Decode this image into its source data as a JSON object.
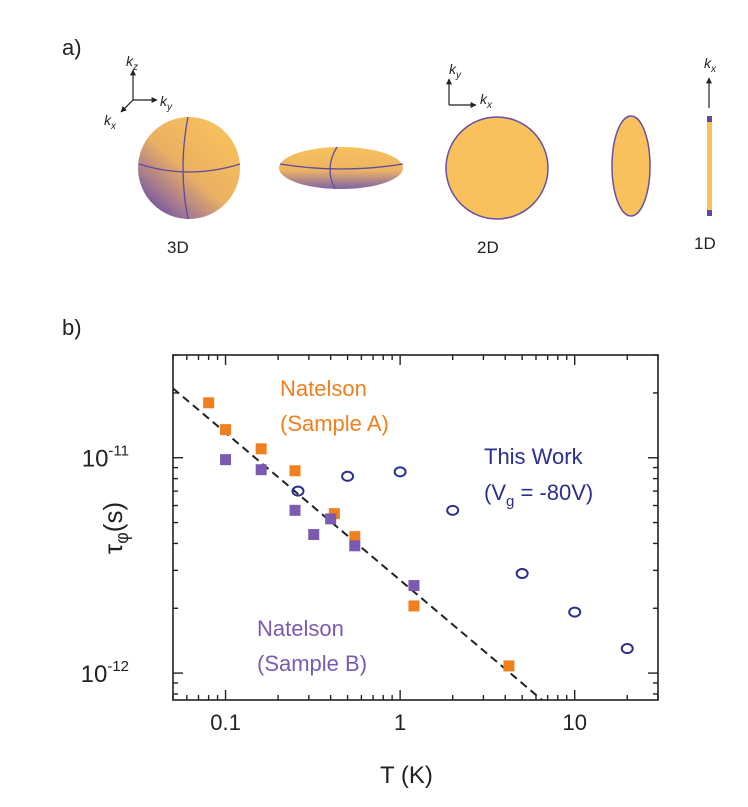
{
  "panel_a": {
    "label": "a)",
    "axes_3d": {
      "z": "k",
      "z_sub": "z",
      "y": "k",
      "y_sub": "y",
      "x": "k",
      "x_sub": "x"
    },
    "axes_2d": {
      "y": "k",
      "y_sub": "y",
      "x": "k",
      "x_sub": "x"
    },
    "axes_1d": {
      "x": "k",
      "x_sub": "x"
    },
    "labels": {
      "d3": "3D",
      "d2": "2D",
      "d1": "1D"
    },
    "colors": {
      "fill": "#F8C15C",
      "edge": "#6A4FA3"
    }
  },
  "panel_b": {
    "label": "b)"
  },
  "chart_data": {
    "type": "scatter",
    "x_scale": "log",
    "y_scale": "log",
    "xlim": [
      0.05,
      30
    ],
    "ylim": [
      7.5e-13,
      3e-11
    ],
    "xlabel": "T (K)",
    "ylabel_main": "τ",
    "ylabel_sub": "φ",
    "ylabel_tail": "(s)",
    "x_ticks": [
      {
        "value": 0.1,
        "label": "0.1"
      },
      {
        "value": 1,
        "label": "1"
      },
      {
        "value": 10,
        "label": "10"
      }
    ],
    "y_ticks": [
      {
        "value": 1e-12,
        "base": "10",
        "exp": "-12"
      },
      {
        "value": 1e-11,
        "base": "10",
        "exp": "-11"
      }
    ],
    "series": [
      {
        "name": "Natelson (Sample A)",
        "marker": "square",
        "color": "#F07F1E",
        "x": [
          0.08,
          0.1,
          0.16,
          0.25,
          0.42,
          0.55,
          1.2,
          4.2
        ],
        "y": [
          1.8e-11,
          1.35e-11,
          1.1e-11,
          8.7e-12,
          5.5e-12,
          4.3e-12,
          2.05e-12,
          1.08e-12
        ]
      },
      {
        "name": "Natelson (Sample B)",
        "marker": "square",
        "color": "#7A5BB0",
        "x": [
          0.1,
          0.16,
          0.25,
          0.32,
          0.4,
          0.55,
          1.2
        ],
        "y": [
          9.8e-12,
          8.8e-12,
          5.7e-12,
          4.4e-12,
          5.2e-12,
          3.9e-12,
          2.55e-12
        ]
      },
      {
        "name": "This Work (Vg = -80V)",
        "marker": "open-circle",
        "color": "#2B2F8F",
        "x": [
          0.26,
          0.5,
          1.0,
          2.0,
          5.0,
          10.0,
          20.0
        ],
        "y": [
          7e-12,
          8.2e-12,
          8.6e-12,
          5.7e-12,
          2.9e-12,
          1.92e-12,
          1.3e-12
        ]
      }
    ],
    "fit_line": {
      "style": "dashed",
      "color": "#222222",
      "x": [
        0.05,
        6.5
      ],
      "y": [
        2.1e-11,
        7.5e-13
      ]
    },
    "annotations": {
      "sample_a_line1": "Natelson",
      "sample_a_line2": "(Sample A)",
      "sample_b_line1": "Natelson",
      "sample_b_line2": "(Sample B)",
      "this_work_line1": "This Work",
      "this_work_line2_pre": "(V",
      "this_work_line2_sub": "g",
      "this_work_line2_post": " = -80V)"
    }
  }
}
